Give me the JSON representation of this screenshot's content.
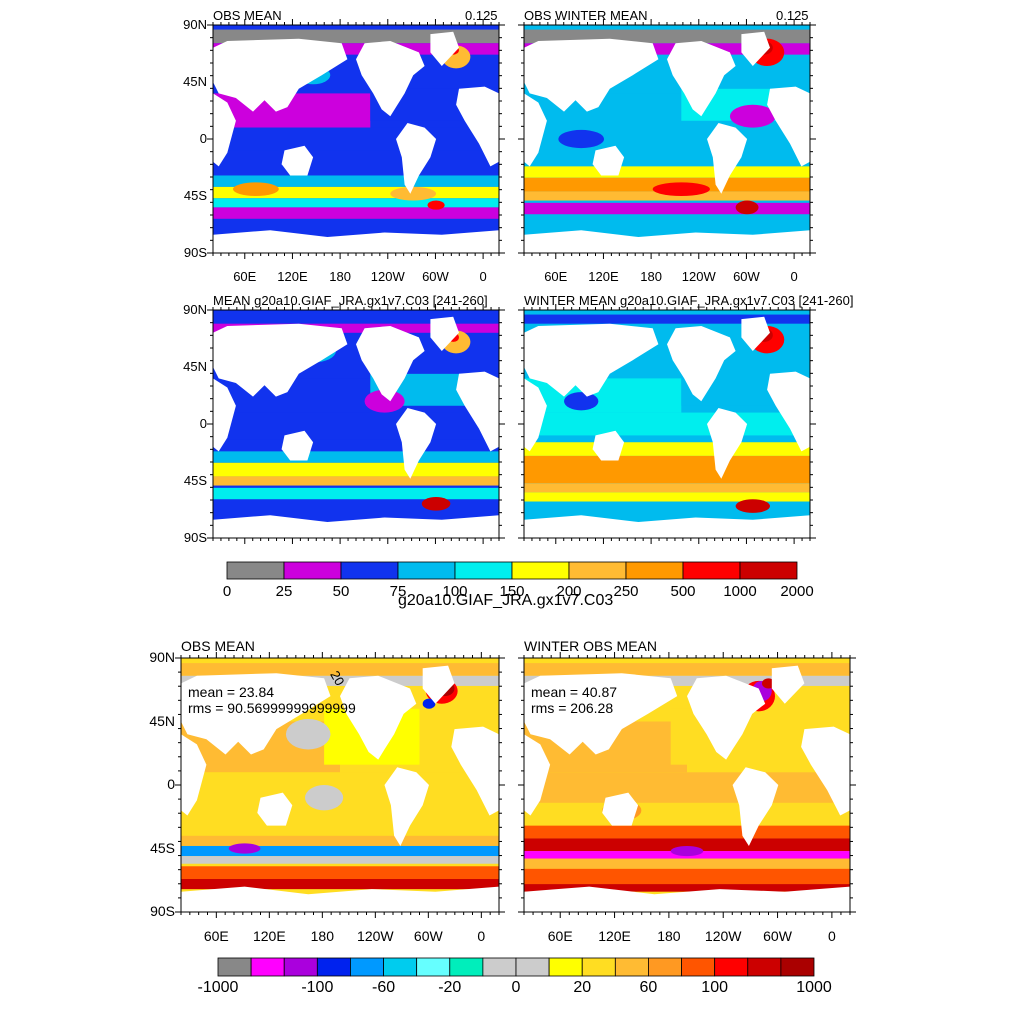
{
  "top_section": {
    "panels": [
      {
        "id": "p1",
        "title_left": "OBS MEAN",
        "title_right": "0.125",
        "field": "mld_obs_mean"
      },
      {
        "id": "p2",
        "title_left": "OBS WINTER MEAN",
        "title_right": "0.125",
        "field": "mld_obs_winter"
      },
      {
        "id": "p3",
        "title_left": "MEAN g20a10.GIAF_JRA.gx1v7.C03 [241-260]",
        "title_right": "",
        "field": "mld_model_mean"
      },
      {
        "id": "p4",
        "title_left": "WINTER MEAN g20a10.GIAF_JRA.gx1v7.C03 [241-260]",
        "title_right": "",
        "field": "mld_model_winter"
      }
    ],
    "lat_labels": [
      "90N",
      "45N",
      "0",
      "45S",
      "90S"
    ],
    "lon_labels": [
      "60E",
      "120E",
      "180",
      "120W",
      "60W",
      "0"
    ],
    "colorbar": {
      "colors": [
        "#888888",
        "#cc00dd",
        "#1133ee",
        "#00bbee",
        "#00eeee",
        "#ffff00",
        "#ffbb33",
        "#ff9900",
        "#ff0000",
        "#cc0000"
      ],
      "labels": [
        "0",
        "25",
        "50",
        "75",
        "100",
        "150",
        "200",
        "250",
        "500",
        "1000",
        "2000"
      ],
      "title": "g20a10.GIAF_JRA.gx1v7.C03"
    }
  },
  "bottom_section": {
    "panels": [
      {
        "id": "p5",
        "title_left": "OBS MEAN",
        "stat_mean": "mean = 23.84",
        "stat_rms": "rms = 90.56999999999999",
        "contour_label": "20"
      },
      {
        "id": "p6",
        "title_left": "WINTER OBS MEAN",
        "stat_mean": "mean = 40.87",
        "stat_rms": "rms = 206.28"
      }
    ],
    "lat_labels": [
      "90N",
      "45N",
      "0",
      "45S",
      "90S"
    ],
    "lon_labels": [
      "60E",
      "120E",
      "180",
      "120W",
      "60W",
      "0"
    ],
    "colorbar": {
      "colors": [
        "#888888",
        "#ff00ff",
        "#aa00dd",
        "#0022ee",
        "#0099ff",
        "#00ccee",
        "#66ffff",
        "#00eebb",
        "#cccccc",
        "#cccccc",
        "#ffff00",
        "#ffdd22",
        "#ffbb33",
        "#ff9922",
        "#ff5500",
        "#ff0000",
        "#cc0000",
        "#aa0000"
      ],
      "labels": [
        "-1000",
        "-100",
        "-60",
        "-20",
        "0",
        "20",
        "60",
        "100",
        "1000"
      ]
    }
  },
  "colors": {
    "land": "#ffffff",
    "frame": "#000000"
  }
}
